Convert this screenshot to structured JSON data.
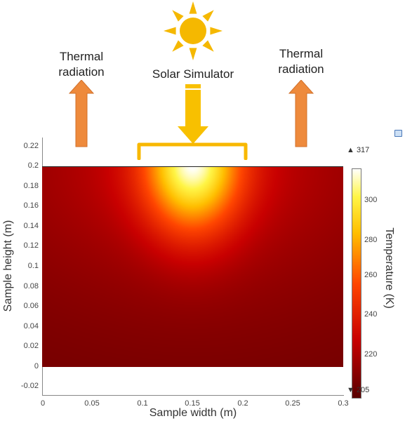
{
  "annotations": {
    "left_label": [
      "Thermal",
      "radiation"
    ],
    "right_label": [
      "Thermal",
      "radiation"
    ],
    "center_label": "Solar Simulator"
  },
  "colors": {
    "sun": "#f5b800",
    "arrow_orange": "#ee8a3c",
    "arrow_orange_dark": "#d1702a",
    "solar_arrow": "#f8c000",
    "bracket": "#f8b800"
  },
  "chart_data": {
    "type": "heatmap",
    "title": "",
    "xlabel": "Sample width (m)",
    "ylabel": "Sample height (m)",
    "xlim": [
      0,
      0.3
    ],
    "ylim": [
      -0.03,
      0.23
    ],
    "data_extent": {
      "x": [
        0,
        0.3
      ],
      "y": [
        0,
        0.2
      ]
    },
    "x_ticks": [
      "0",
      "0.05",
      "0.1",
      "0.15",
      "0.2",
      "0.25",
      "0.3"
    ],
    "y_ticks": [
      "-0.02",
      "0",
      "0.02",
      "0.04",
      "0.06",
      "0.08",
      "0.1",
      "0.12",
      "0.14",
      "0.16",
      "0.18",
      "0.2",
      "0.22"
    ],
    "colorbar": {
      "label": "Temperature (K)",
      "min": 205,
      "max": 317,
      "max_label": "▲ 317",
      "min_label": "▼ 205",
      "ticks": [
        "220",
        "240",
        "260",
        "280",
        "300"
      ],
      "colormap": "heat"
    },
    "field": {
      "hotspot_center": [
        0.15,
        0.2
      ],
      "max_value": 317,
      "min_value": 205
    }
  }
}
